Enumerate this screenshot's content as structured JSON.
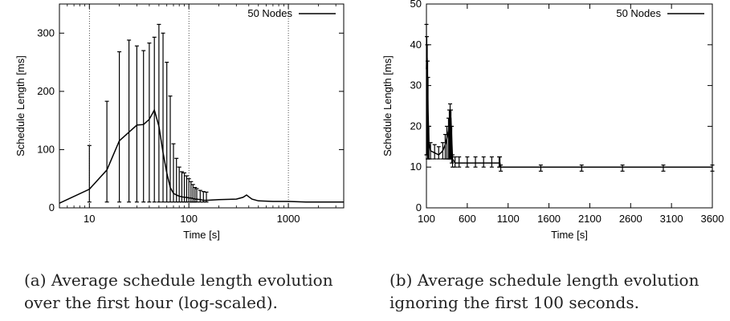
{
  "chart_data": [
    {
      "type": "line",
      "xscale": "log",
      "xlim": [
        5,
        3600
      ],
      "ylim": [
        0,
        350
      ],
      "xlabel": "Time [s]",
      "ylabel": "Schedule Length [ms]",
      "xticks": [
        10,
        100,
        1000
      ],
      "yticks": [
        0,
        100,
        200,
        300
      ],
      "vlines": [
        10,
        100,
        1000
      ],
      "legend": "top-right",
      "series": [
        {
          "name": "50 Nodes",
          "x": [
            5,
            10,
            15,
            20,
            25,
            30,
            35,
            40,
            45,
            50,
            55,
            60,
            65,
            70,
            75,
            80,
            85,
            90,
            95,
            100,
            105,
            110,
            115,
            120,
            130,
            140,
            150,
            200,
            300,
            350,
            380,
            400,
            430,
            500,
            700,
            1000,
            1500,
            2000,
            3600
          ],
          "y": [
            8,
            32,
            65,
            115,
            130,
            142,
            143,
            152,
            168,
            140,
            95,
            60,
            35,
            25,
            22,
            20,
            19,
            18,
            18,
            17,
            17,
            16,
            15,
            15,
            14,
            13,
            13,
            14,
            15,
            18,
            22,
            19,
            15,
            12,
            11,
            11,
            10,
            10,
            10
          ],
          "err_low": [
            null,
            10,
            10,
            10,
            10,
            10,
            10,
            10,
            10,
            10,
            10,
            10,
            10,
            10,
            10,
            10,
            10,
            10,
            10,
            10,
            10,
            10,
            10,
            10,
            10,
            10,
            10,
            null,
            null,
            null,
            null,
            null,
            null,
            null,
            null,
            null,
            null,
            null,
            null
          ],
          "err_high": [
            null,
            107,
            183,
            268,
            288,
            278,
            270,
            283,
            293,
            315,
            300,
            250,
            192,
            110,
            85,
            70,
            62,
            60,
            55,
            50,
            45,
            40,
            35,
            33,
            30,
            28,
            27,
            null,
            null,
            null,
            null,
            null,
            null,
            null,
            null,
            null,
            null,
            null,
            null
          ]
        }
      ]
    },
    {
      "type": "line",
      "xlim": [
        100,
        3600
      ],
      "ylim": [
        0,
        50
      ],
      "xlabel": "Time [s]",
      "ylabel": "Schedule Length [ms]",
      "xticks": [
        100,
        600,
        1100,
        1600,
        2100,
        2600,
        3100,
        3600
      ],
      "yticks": [
        0,
        10,
        20,
        30,
        40,
        50
      ],
      "legend": "top-right",
      "series": [
        {
          "name": "50 Nodes",
          "x": [
            100,
            105,
            110,
            115,
            120,
            130,
            150,
            200,
            250,
            300,
            330,
            350,
            370,
            380,
            390,
            400,
            410,
            420,
            450,
            500,
            600,
            700,
            800,
            900,
            990,
            1000,
            1010,
            1500,
            2000,
            2500,
            3000,
            3600
          ],
          "y": [
            34,
            38,
            36,
            30,
            24,
            16,
            14,
            13.5,
            13,
            14,
            15.5,
            17,
            19,
            21,
            23,
            22,
            17,
            12,
            11,
            11,
            11,
            11,
            11,
            11,
            11,
            11,
            10,
            10,
            10,
            10,
            10,
            10
          ],
          "err_low": [
            13,
            13,
            13,
            12,
            12,
            12,
            12,
            12,
            12,
            12,
            12,
            12,
            12,
            12,
            12,
            12,
            11,
            10,
            10,
            10,
            10,
            10,
            10,
            10,
            10,
            10,
            9,
            9,
            9,
            9,
            9,
            9
          ],
          "err_high": [
            45,
            42,
            40,
            36,
            32,
            20,
            16,
            15.5,
            15,
            16,
            18,
            20,
            22,
            24,
            25.5,
            24,
            20,
            13,
            12.5,
            12.5,
            12.5,
            12.5,
            12.5,
            12.5,
            12.5,
            12.5,
            10.5,
            10.5,
            10.5,
            10.5,
            10.5,
            10.5
          ]
        }
      ]
    }
  ],
  "captions": {
    "a_line1": "(a) Average schedule length evolution",
    "a_line2": "over the first hour (log-scaled).",
    "b_line1": "(b) Average schedule length evolution",
    "b_line2": "ignoring the first 100 seconds."
  }
}
